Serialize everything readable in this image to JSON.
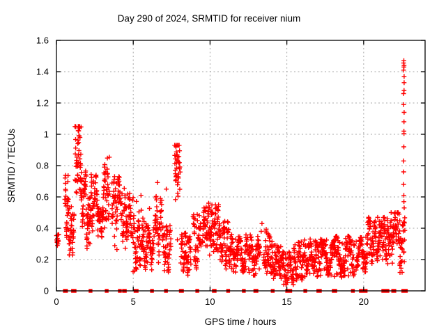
{
  "chart_data": {
    "type": "scatter",
    "title": "Day 290 of 2024, SRMTID for receiver nium",
    "xlabel": "GPS time / hours",
    "ylabel": "SRMTID / TECUs",
    "xlim": [
      0,
      24
    ],
    "ylim": [
      0,
      1.6
    ],
    "grid": true,
    "legend": "none",
    "marker": "plus",
    "zero_marker": "filled-square",
    "colors": {
      "points": "#ff0000",
      "grid": "#a6a6a6",
      "axis": "#000000",
      "background": "#ffffff"
    },
    "x_ticks": [
      {
        "value": 0,
        "label": "0"
      },
      {
        "value": 5,
        "label": "5"
      },
      {
        "value": 10,
        "label": "10"
      },
      {
        "value": 15,
        "label": "15"
      },
      {
        "value": 20,
        "label": "20"
      }
    ],
    "y_ticks": [
      {
        "value": 0,
        "label": "0"
      },
      {
        "value": 0.2,
        "label": "0.2"
      },
      {
        "value": 0.4,
        "label": "0.4"
      },
      {
        "value": 0.6,
        "label": "0.6"
      },
      {
        "value": 0.8,
        "label": "0.8"
      },
      {
        "value": 1.0,
        "label": "1"
      },
      {
        "value": 1.2,
        "label": "1.2"
      },
      {
        "value": 1.4,
        "label": "1.4"
      },
      {
        "value": 1.6,
        "label": "1.6"
      }
    ],
    "clusters_note": "dense 30s-cadence scatter summarized as clusters: [xStart,xEnd,yMin,yMax,denseYMin,denseYMax,count]",
    "clusters": [
      [
        0.0,
        0.15,
        0.29,
        0.36,
        0.3,
        0.35,
        8
      ],
      [
        0.55,
        0.8,
        0.27,
        0.93,
        0.4,
        0.65,
        30
      ],
      [
        0.8,
        1.15,
        0.22,
        0.55,
        0.28,
        0.46,
        38
      ],
      [
        1.2,
        1.6,
        0.5,
        1.05,
        0.72,
        1.02,
        48
      ],
      [
        1.55,
        1.95,
        0.33,
        0.8,
        0.5,
        0.7,
        45
      ],
      [
        1.95,
        2.25,
        0.27,
        0.62,
        0.32,
        0.52,
        34
      ],
      [
        2.25,
        2.7,
        0.33,
        0.78,
        0.48,
        0.68,
        42
      ],
      [
        2.7,
        3.05,
        0.34,
        0.54,
        0.38,
        0.5,
        38
      ],
      [
        3.05,
        3.45,
        0.33,
        0.88,
        0.52,
        0.76,
        45
      ],
      [
        3.6,
        4.2,
        0.25,
        0.73,
        0.48,
        0.68,
        60
      ],
      [
        4.25,
        4.9,
        0.27,
        0.68,
        0.38,
        0.56,
        60
      ],
      [
        4.95,
        5.6,
        0.12,
        0.62,
        0.2,
        0.42,
        60
      ],
      [
        5.6,
        6.35,
        0.13,
        0.53,
        0.2,
        0.38,
        68
      ],
      [
        6.4,
        6.85,
        0.18,
        0.75,
        0.25,
        0.5,
        42
      ],
      [
        6.9,
        7.45,
        0.12,
        0.48,
        0.17,
        0.35,
        50
      ],
      [
        7.7,
        8.05,
        0.3,
        0.93,
        0.7,
        0.92,
        45
      ],
      [
        8.1,
        8.75,
        0.1,
        0.4,
        0.14,
        0.3,
        60
      ],
      [
        8.9,
        9.4,
        0.14,
        0.52,
        0.2,
        0.4,
        46
      ],
      [
        9.5,
        10.1,
        0.2,
        0.56,
        0.3,
        0.5,
        55
      ],
      [
        10.1,
        10.6,
        0.22,
        0.55,
        0.32,
        0.5,
        46
      ],
      [
        10.6,
        11.25,
        0.14,
        0.45,
        0.2,
        0.37,
        60
      ],
      [
        11.25,
        12.45,
        0.12,
        0.37,
        0.17,
        0.31,
        105
      ],
      [
        12.5,
        13.25,
        0.1,
        0.38,
        0.14,
        0.3,
        66
      ],
      [
        13.5,
        14.05,
        0.11,
        0.42,
        0.17,
        0.34,
        50
      ],
      [
        14.05,
        14.6,
        0.07,
        0.3,
        0.11,
        0.24,
        50
      ],
      [
        14.6,
        15.45,
        0.04,
        0.25,
        0.08,
        0.2,
        75
      ],
      [
        15.45,
        16.1,
        0.07,
        0.33,
        0.11,
        0.27,
        58
      ],
      [
        16.1,
        17.2,
        0.09,
        0.35,
        0.14,
        0.28,
        95
      ],
      [
        17.2,
        18.1,
        0.1,
        0.33,
        0.15,
        0.29,
        80
      ],
      [
        18.1,
        19.4,
        0.08,
        0.35,
        0.14,
        0.29,
        112
      ],
      [
        19.5,
        20.25,
        0.12,
        0.36,
        0.17,
        0.3,
        65
      ],
      [
        20.25,
        21.05,
        0.14,
        0.47,
        0.24,
        0.42,
        70
      ],
      [
        21.05,
        21.45,
        0.18,
        0.47,
        0.27,
        0.42,
        38
      ],
      [
        21.45,
        21.95,
        0.1,
        0.5,
        0.24,
        0.45,
        46
      ],
      [
        21.95,
        22.35,
        0.28,
        0.5,
        0.34,
        0.48,
        36
      ],
      [
        22.35,
        22.68,
        0.1,
        0.47,
        0.2,
        0.42,
        34
      ]
    ],
    "spike_x": 22.62,
    "spike_points": [
      1.47,
      1.455,
      1.44,
      1.43,
      1.41,
      1.37,
      1.33,
      1.28,
      1.26,
      1.19,
      1.14,
      1.08,
      1.02,
      1.005,
      0.92,
      0.83,
      0.76,
      0.68,
      0.61,
      0.57,
      0.53
    ],
    "outliers": [
      [
        0.04,
        0.31
      ],
      [
        0.07,
        0.335
      ],
      [
        0.1,
        0.3
      ],
      [
        7.15,
        0.65
      ],
      [
        13.38,
        0.43
      ],
      [
        13.33,
        0.38
      ],
      [
        1.42,
        1.05
      ],
      [
        7.88,
        0.93
      ]
    ],
    "zero_marker_hours": [
      0.55,
      0.62,
      1.08,
      1.18,
      2.22,
      3.27,
      4.13,
      4.4,
      4.45,
      5.15,
      5.22,
      6.22,
      7.13,
      8.1,
      8.17,
      9.17,
      10.25,
      10.3,
      11.18,
      12.2,
      12.95,
      13.02,
      14.08,
      15.02,
      15.1,
      15.22,
      16.2,
      17.05,
      17.15,
      18.05,
      18.15,
      19.3,
      19.82,
      19.88,
      19.93,
      19.98,
      20.03,
      20.08,
      20.13,
      21.28,
      21.35,
      21.55,
      21.92,
      22.0,
      22.58,
      22.68,
      22.75
    ]
  }
}
